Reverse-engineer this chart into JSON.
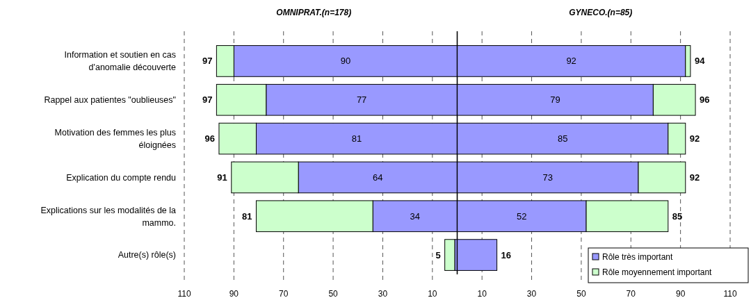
{
  "chart_data": [
    {
      "type": "bar",
      "orientation": "horizontal",
      "stacked": true,
      "title": "OMNIPRAT.(n=178)",
      "categories": [
        "Information et soutien en cas d'anomalie découverte",
        "Rappel aux patientes \"oublieuses\"",
        "Motivation des femmes les plus éloignées",
        "Explication du compte rendu",
        "Explications sur les modalités de la mammo.",
        "Autre(s) rôle(s)"
      ],
      "series": [
        {
          "color": "#9999ff",
          "values": [
            90,
            77,
            81,
            64,
            34,
            1
          ],
          "value_labels": [
            "90",
            "77",
            "81",
            "64",
            "34",
            null
          ]
        },
        {
          "color": "#ccffcc",
          "values": [
            7,
            20,
            15,
            27,
            47,
            4
          ]
        }
      ],
      "xlim": [
        110,
        0
      ],
      "xticks": [
        110,
        90,
        70,
        50,
        30,
        10
      ],
      "grid": "x",
      "annotations": [
        {
          "text": "97",
          "x": 97,
          "y": "Information et soutien en cas d'anomalie découverte"
        },
        {
          "text": "97",
          "x": 97,
          "y": "Rappel aux patientes \"oublieuses\""
        },
        {
          "text": "96",
          "x": 96,
          "y": "Motivation des femmes les plus éloignées"
        },
        {
          "text": "91",
          "x": 91,
          "y": "Explication du compte rendu"
        },
        {
          "text": "81",
          "x": 81,
          "y": "Explications sur les modalités de la mammo."
        },
        {
          "text": "5",
          "x": 5,
          "y": "Autre(s) rôle(s)"
        }
      ]
    },
    {
      "type": "bar",
      "orientation": "horizontal",
      "stacked": true,
      "title": "GYNECO.(n=85)",
      "tick_labels": "x",
      "categories": [
        "Information et soutien en cas d'anomalie découverte",
        "Rappel aux patientes \"oublieuses\"",
        "Motivation des femmes les plus éloignées",
        "Explication du compte rendu",
        "Explications sur les modalités de la mammo.",
        "Autre(s) rôle(s)"
      ],
      "series": [
        {
          "name": "Rôle très important",
          "color": "#9999ff",
          "values": [
            92,
            79,
            85,
            73,
            52,
            16
          ],
          "value_labels": [
            "92",
            "79",
            "85",
            "73",
            "52",
            null
          ]
        },
        {
          "name": "Rôle moyennement important",
          "color": "#ccffcc",
          "values": [
            2,
            17,
            7,
            19,
            33,
            0
          ]
        }
      ],
      "xlim": [
        0,
        110
      ],
      "xticks": [
        10,
        30,
        50,
        70,
        90,
        110
      ],
      "grid": "x",
      "legend": "bottom right",
      "annotations": [
        {
          "text": "94",
          "x": 94,
          "y": "Information et soutien en cas d'anomalie découverte"
        },
        {
          "text": "96",
          "x": 96,
          "y": "Rappel aux patientes \"oublieuses\""
        },
        {
          "text": "92",
          "x": 92,
          "y": "Motivation des femmes les plus éloignées"
        },
        {
          "text": "92",
          "x": 92,
          "y": "Explication du compte rendu"
        },
        {
          "text": "85",
          "x": 85,
          "y": "Explications sur les modalités de la mammo."
        },
        {
          "text": "16",
          "x": 16,
          "y": "Autre(s) rôle(s)"
        }
      ]
    }
  ]
}
